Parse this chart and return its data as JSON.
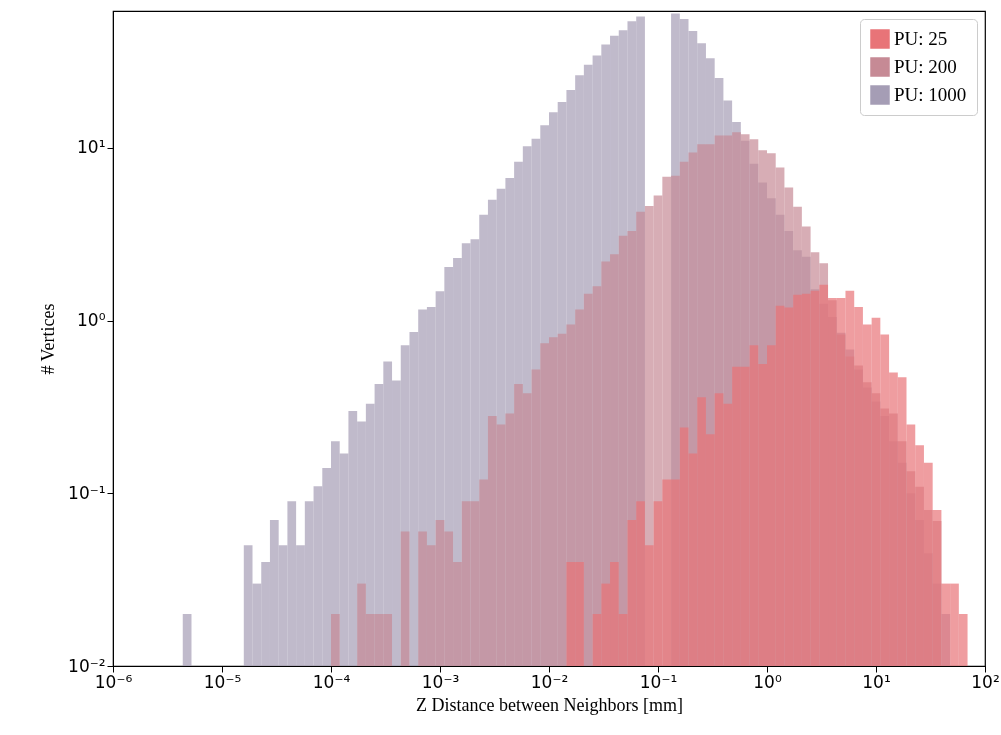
{
  "chart_data": {
    "type": "histogram",
    "xlabel": "Z Distance between Neighbors [mm]",
    "ylabel": "# Vertices",
    "log": "xy",
    "grid": false,
    "legend": "top right",
    "xlim": [
      1e-06,
      100
    ],
    "ylim": [
      0.01,
      62
    ],
    "xticks": [
      {
        "value": 1e-06,
        "label": "10⁻⁶"
      },
      {
        "value": 1e-05,
        "label": "10⁻⁵"
      },
      {
        "value": 0.0001,
        "label": "10⁻⁴"
      },
      {
        "value": 0.001,
        "label": "10⁻³"
      },
      {
        "value": 0.01,
        "label": "10⁻²"
      },
      {
        "value": 0.1,
        "label": "10⁻¹"
      },
      {
        "value": 1,
        "label": "10⁰"
      },
      {
        "value": 10,
        "label": "10¹"
      },
      {
        "value": 100,
        "label": "10²"
      }
    ],
    "yticks": [
      {
        "value": 0.01,
        "label": "10⁻²"
      },
      {
        "value": 0.1,
        "label": "10⁻¹"
      },
      {
        "value": 1,
        "label": "10⁰"
      },
      {
        "value": 10,
        "label": "10¹"
      }
    ],
    "bins": [
      1e-06,
      1.202e-06,
      1.445e-06,
      1.738e-06,
      2.089e-06,
      2.512e-06,
      3.02e-06,
      3.631e-06,
      4.365e-06,
      5.248e-06,
      6.31e-06,
      7.586e-06,
      9.12e-06,
      1.096e-05,
      1.318e-05,
      1.585e-05,
      1.905e-05,
      2.291e-05,
      2.754e-05,
      3.311e-05,
      3.981e-05,
      4.786e-05,
      5.754e-05,
      6.918e-05,
      8.318e-05,
      0.0001,
      0.0001202,
      0.0001445,
      0.0001738,
      0.0002089,
      0.0002512,
      0.000302,
      0.0003631,
      0.0004365,
      0.0005248,
      0.000631,
      0.0007586,
      0.000912,
      0.001096,
      0.001318,
      0.001585,
      0.001905,
      0.002291,
      0.002754,
      0.003311,
      0.003981,
      0.004786,
      0.005754,
      0.006918,
      0.008318,
      0.01,
      0.01202,
      0.01445,
      0.01738,
      0.02089,
      0.02512,
      0.0302,
      0.03631,
      0.04365,
      0.05248,
      0.0631,
      0.07586,
      0.0912,
      0.1096,
      0.1318,
      0.1585,
      0.1905,
      0.2291,
      0.2754,
      0.3311,
      0.3981,
      0.4786,
      0.5754,
      0.6918,
      0.8318,
      1,
      1.202,
      1.445,
      1.738,
      2.089,
      2.512,
      3.02,
      3.631,
      4.365,
      5.248,
      6.31,
      7.586,
      9.12,
      10.96,
      13.18,
      15.85,
      19.05,
      22.91,
      27.54,
      33.11,
      39.81,
      47.86,
      57.54,
      69.18,
      83.18,
      100
    ],
    "series": [
      {
        "name": "PU: 25",
        "color": "#e87478",
        "values": [
          null,
          null,
          null,
          null,
          null,
          null,
          null,
          null,
          null,
          null,
          null,
          null,
          null,
          null,
          null,
          null,
          null,
          null,
          null,
          null,
          null,
          null,
          null,
          null,
          null,
          null,
          null,
          null,
          null,
          null,
          null,
          null,
          null,
          null,
          null,
          null,
          null,
          null,
          null,
          null,
          null,
          null,
          null,
          null,
          null,
          null,
          null,
          null,
          null,
          null,
          null,
          null,
          0.04,
          0.04,
          null,
          0.02,
          0.03,
          0.04,
          0.02,
          0.07,
          0.09,
          0.05,
          0.09,
          0.12,
          0.12,
          0.24,
          0.17,
          0.36,
          0.22,
          0.38,
          0.33,
          0.54,
          0.54,
          0.72,
          0.56,
          0.72,
          1.22,
          1.19,
          1.41,
          1.43,
          1.49,
          1.61,
          1.35,
          1.35,
          1.49,
          1.2,
          0.95,
          1.04,
          0.83,
          0.5,
          0.47,
          0.25,
          0.19,
          0.15,
          0.08,
          0.03,
          0.03,
          0.02,
          null,
          null
        ]
      },
      {
        "name": "PU: 200",
        "color": "#c68a95",
        "values": [
          null,
          null,
          null,
          null,
          null,
          null,
          null,
          null,
          null,
          null,
          null,
          null,
          null,
          null,
          null,
          null,
          null,
          null,
          null,
          null,
          null,
          null,
          null,
          null,
          null,
          0.02,
          null,
          null,
          0.03,
          0.02,
          0.02,
          0.02,
          null,
          0.06,
          null,
          0.06,
          0.05,
          0.07,
          0.06,
          0.04,
          0.09,
          0.09,
          0.12,
          0.28,
          0.25,
          0.29,
          0.43,
          0.38,
          0.52,
          0.74,
          0.8,
          0.84,
          0.95,
          1.16,
          1.43,
          1.58,
          2.2,
          2.42,
          3.1,
          3.3,
          4.26,
          4.6,
          5.3,
          6.8,
          6.9,
          8.3,
          9.4,
          10.5,
          10.5,
          11.8,
          11.8,
          12.3,
          12,
          11.2,
          9.7,
          9.3,
          7.7,
          5.9,
          4.56,
          3.5,
          2.49,
          2.15,
          1.31,
          0.83,
          0.62,
          0.55,
          0.44,
          0.38,
          0.31,
          0.29,
          0.2,
          0.134,
          0.109,
          0.08,
          0.069,
          null,
          null,
          null,
          null,
          null
        ]
      },
      {
        "name": "PU: 1000",
        "color": "#a59db5",
        "values": [
          null,
          null,
          null,
          null,
          null,
          null,
          null,
          null,
          0.02,
          null,
          null,
          null,
          null,
          null,
          null,
          0.05,
          0.03,
          0.04,
          0.07,
          0.05,
          0.09,
          0.05,
          0.09,
          0.11,
          0.14,
          0.2,
          0.17,
          0.3,
          0.26,
          0.33,
          0.43,
          0.58,
          0.45,
          0.72,
          0.86,
          1.16,
          1.2,
          1.48,
          2.04,
          2.3,
          2.8,
          2.96,
          4.1,
          5.0,
          5.8,
          6.7,
          8.3,
          10.2,
          11.3,
          13.5,
          16.1,
          18.4,
          21.6,
          26.3,
          30.3,
          34.3,
          39.7,
          44.6,
          48,
          54,
          57.6,
          null,
          null,
          null,
          60,
          55.8,
          47.5,
          40.4,
          33,
          25.4,
          18.8,
          14.1,
          11,
          8.1,
          6.3,
          5.1,
          4.1,
          3.3,
          2.55,
          2.34,
          1.52,
          1.25,
          1.05,
          0.85,
          0.68,
          0.52,
          0.41,
          0.34,
          0.28,
          0.2,
          0.15,
          0.1,
          0.07,
          0.045,
          0.03,
          0.02,
          null,
          null,
          null,
          null
        ]
      }
    ]
  }
}
